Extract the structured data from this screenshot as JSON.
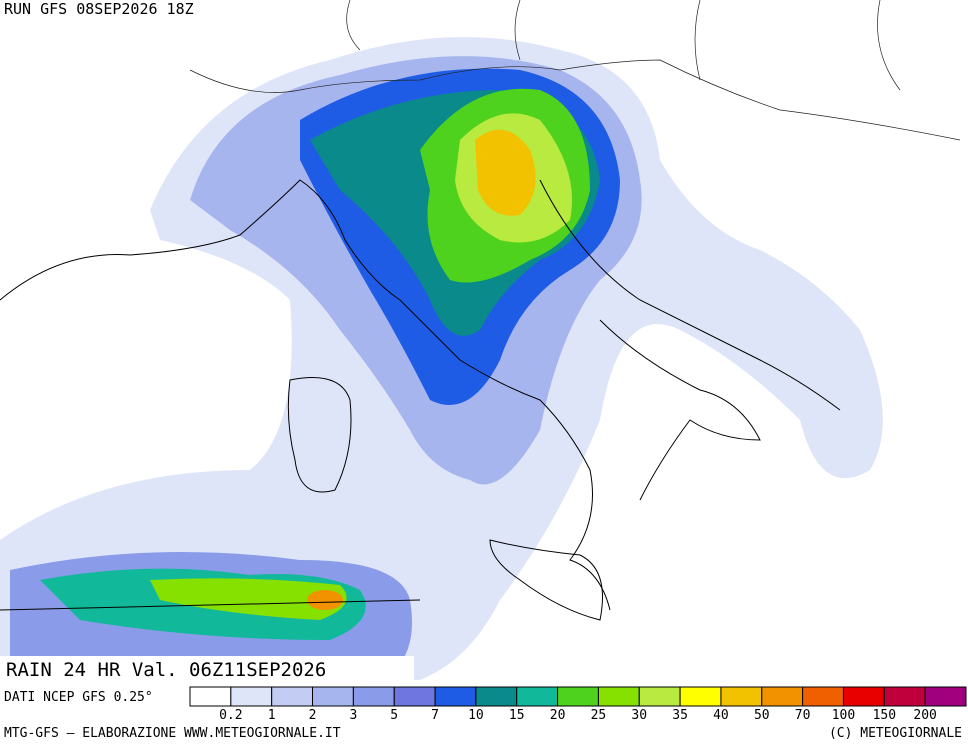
{
  "header": {
    "run": "RUN GFS 08SEP2026 18Z"
  },
  "map": {
    "title": "RAIN 24 HR Val. 06Z11SEP2026",
    "source": "DATI NCEP GFS 0.25°"
  },
  "legend": {
    "levels": [
      0.2,
      1,
      2,
      3,
      5,
      7,
      10,
      15,
      20,
      25,
      30,
      35,
      40,
      50,
      70,
      100,
      150,
      200
    ],
    "colors": [
      "#ffffff",
      "#dfe5f8",
      "#c3cdf3",
      "#a7b5ee",
      "#8a9ce9",
      "#6f76df",
      "#1f5ce6",
      "#0a8a8a",
      "#12b89a",
      "#4ed21e",
      "#86e000",
      "#b8ea40",
      "#ffff00",
      "#f2c200",
      "#f29200",
      "#f06000",
      "#e80000",
      "#c0003c",
      "#a0007e"
    ]
  },
  "footer": {
    "left": "MTG-GFS – ELABORAZIONE WWW.METEOGIORNALE.IT",
    "right": "(C) METEOGIORNALE"
  }
}
